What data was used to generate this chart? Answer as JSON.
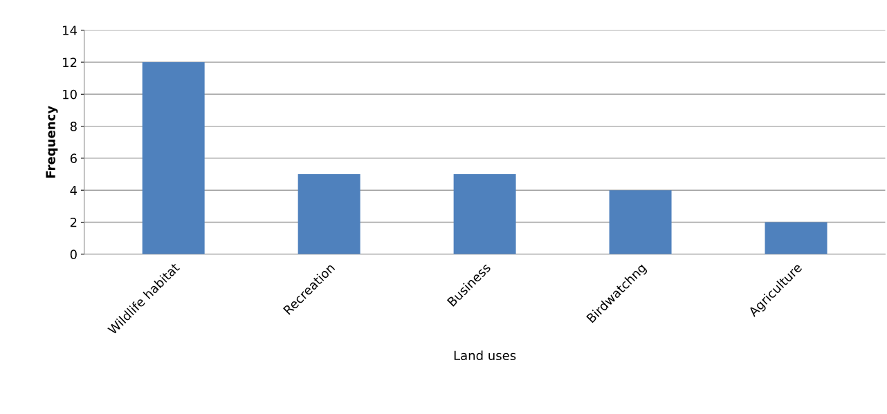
{
  "chart_data": {
    "type": "bar",
    "xlabel": "Land uses",
    "ylabel": "Frequency",
    "categories": [
      "Wildlife habitat",
      "Recreation",
      "Business",
      "Birdwatchng",
      "Agriculture"
    ],
    "values": [
      12,
      5,
      5,
      4,
      2
    ],
    "color": "#4f81bd",
    "ylim": [
      0,
      14
    ],
    "yticks": [
      0,
      2,
      4,
      6,
      8,
      10,
      12,
      14
    ],
    "grid": "y",
    "legend": false
  }
}
